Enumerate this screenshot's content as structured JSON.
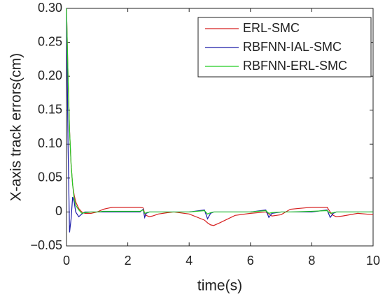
{
  "chart_data": {
    "type": "line",
    "xlabel": "time(s)",
    "ylabel": "X-axis track errors(cm)",
    "x": [
      0,
      0.05,
      0.1,
      0.15,
      0.2,
      0.25,
      0.3,
      0.4,
      0.5,
      0.6,
      0.8,
      1.0,
      1.2,
      1.5,
      2.0,
      2.4,
      2.5,
      2.55,
      2.6,
      2.7,
      2.8,
      3.0,
      3.3,
      3.5,
      4.0,
      4.5,
      4.6,
      4.7,
      4.8,
      5.0,
      5.5,
      6.0,
      6.5,
      6.6,
      6.7,
      7.0,
      7.3,
      8.0,
      8.5,
      8.6,
      8.7,
      8.8,
      9.0,
      9.5,
      10.0
    ],
    "series": [
      {
        "name": "ERL-SMC",
        "color": "#d62020",
        "values": [
          0.3,
          0.2,
          0.12,
          0.07,
          0.04,
          0.025,
          0.015,
          0.005,
          0.0,
          -0.002,
          -0.002,
          0.0,
          0.004,
          0.007,
          0.007,
          0.007,
          0.006,
          -0.002,
          -0.005,
          -0.007,
          -0.006,
          -0.003,
          -0.001,
          0.0,
          -0.003,
          -0.012,
          -0.016,
          -0.019,
          -0.02,
          -0.016,
          -0.005,
          -0.002,
          0.0,
          -0.003,
          -0.006,
          -0.004,
          0.004,
          0.007,
          0.007,
          0.0,
          -0.005,
          -0.007,
          -0.006,
          -0.002,
          -0.004
        ]
      },
      {
        "name": "RBFNN-IAL-SMC",
        "color": "#1a1aa8",
        "values": [
          0.3,
          0.1,
          -0.03,
          -0.01,
          0.022,
          0.015,
          0.0,
          -0.007,
          -0.003,
          0.0,
          0.0,
          0.0,
          0.0,
          0.0,
          0.0,
          0.0,
          0.004,
          -0.008,
          -0.002,
          0.0,
          0.0,
          0.0,
          0.0,
          0.0,
          0.0,
          0.003,
          -0.01,
          -0.002,
          0.0,
          0.0,
          0.0,
          0.0,
          0.003,
          -0.008,
          -0.002,
          0.0,
          0.0,
          0.0,
          0.003,
          -0.008,
          -0.002,
          0.0,
          0.0,
          0.0,
          0.0
        ]
      },
      {
        "name": "RBFNN-ERL-SMC",
        "color": "#22cc22",
        "values": [
          0.3,
          0.2,
          0.12,
          0.07,
          0.04,
          0.02,
          0.01,
          0.003,
          -0.002,
          -0.001,
          0.0,
          0.0,
          0.001,
          0.001,
          0.001,
          0.001,
          0.003,
          -0.002,
          -0.001,
          0.0,
          0.0,
          0.0,
          0.0,
          0.0,
          0.0,
          0.002,
          -0.003,
          -0.001,
          0.0,
          0.0,
          0.0,
          0.0,
          0.002,
          -0.002,
          -0.001,
          0.0,
          0.0,
          0.001,
          0.002,
          -0.002,
          -0.001,
          0.0,
          0.0,
          0.0,
          0.0
        ]
      }
    ],
    "xlim": [
      0,
      10
    ],
    "xticks": [
      0,
      2,
      4,
      6,
      8,
      10
    ],
    "ylim": [
      -0.05,
      0.3
    ],
    "yticks": [
      {
        "value": -0.05,
        "label": "−0.05"
      },
      0,
      0.05,
      {
        "value": 0.1,
        "label": "0.10"
      },
      0.15,
      {
        "value": 0.2,
        "label": "0.20"
      },
      0.25,
      {
        "value": 0.3,
        "label": "0.30"
      }
    ],
    "legend": "upper right"
  }
}
